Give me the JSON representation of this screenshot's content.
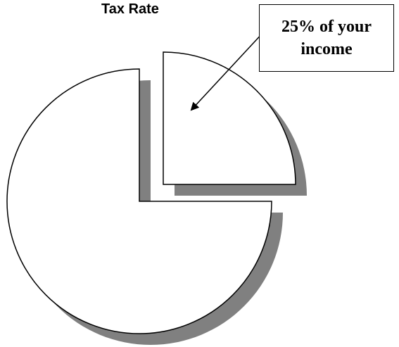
{
  "chart_data": {
    "type": "pie",
    "title": "Tax Rate",
    "slices": [
      {
        "label": "25% of your income",
        "value": 25,
        "exploded": true
      },
      {
        "value": 75,
        "exploded": false
      }
    ]
  },
  "annotation": {
    "line1": "25% of your",
    "line2": "income"
  },
  "colors": {
    "slice_fill": "#ffffff",
    "slice_outline": "#000000",
    "shadow": "#808080"
  }
}
